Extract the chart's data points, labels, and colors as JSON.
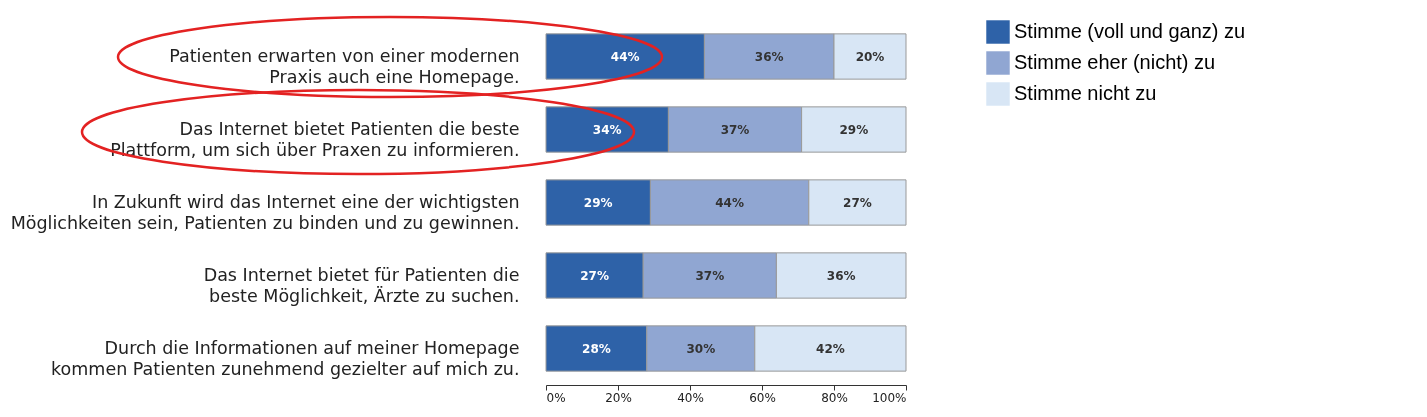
{
  "chart_data": {
    "type": "bar",
    "orientation": "horizontal",
    "stacked": true,
    "categories": [
      "Patienten erwarten von einer modernen\nPraxis auch eine Homepage.",
      "Das Internet bietet Patienten die beste\nPlattform, um sich über Praxen zu informieren.",
      "In Zukunft wird das Internet eine der wichtigsten\nMöglichkeiten sein, Patienten zu binden und zu gewinnen.",
      "Das Internet bietet für Patienten die\nbeste Möglichkeit, Ärzte zu suchen.",
      "Durch die Informationen auf meiner Homepage\nkommen Patienten zunehmend gezielter auf mich zu."
    ],
    "series": [
      {
        "name": "Stimme (voll und ganz) zu",
        "color": "#2e62a8",
        "values": [
          44,
          34,
          29,
          27,
          28
        ],
        "value_labels": [
          "44%",
          "34%",
          "29%",
          "27%",
          "28%"
        ]
      },
      {
        "name": "Stimme eher (nicht) zu",
        "color": "#90a6d2",
        "values": [
          36,
          37,
          44,
          37,
          30
        ],
        "value_labels": [
          "36%",
          "37%",
          "44%",
          "37%",
          "30%"
        ]
      },
      {
        "name": "Stimme nicht zu",
        "color": "#d8e6f5",
        "values": [
          20,
          29,
          27,
          36,
          42
        ],
        "value_labels": [
          "20%",
          "29%",
          "27%",
          "36%",
          "42%"
        ]
      }
    ],
    "xlim": [
      0,
      100
    ],
    "xticks": [
      {
        "value": 0,
        "label": "0%"
      },
      {
        "value": 20,
        "label": "20%"
      },
      {
        "value": 40,
        "label": "40%"
      },
      {
        "value": 60,
        "label": "60%"
      },
      {
        "value": 80,
        "label": "80%"
      },
      {
        "value": 100,
        "label": "100%"
      }
    ],
    "grid": false,
    "legend": "top right"
  }
}
